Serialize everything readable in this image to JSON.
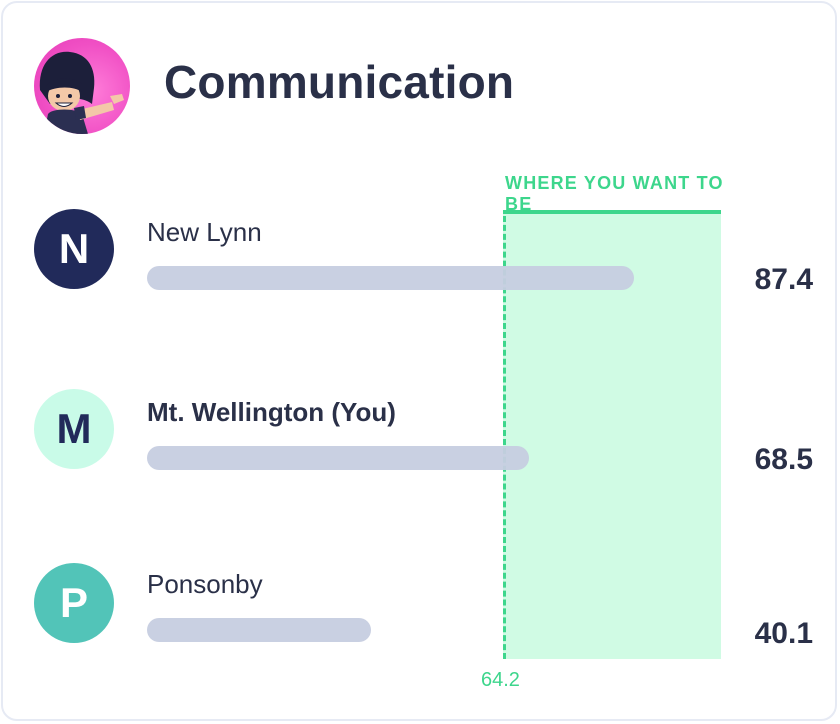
{
  "header": {
    "title": "Communication"
  },
  "chart_data": {
    "type": "bar",
    "orientation": "horizontal",
    "target_label": "WHERE YOU WANT TO BE",
    "threshold": 64.2,
    "threshold_label": "64.2",
    "xlim": [
      0,
      100
    ],
    "categories": [
      "New Lynn",
      "Mt. Wellington (You)",
      "Ponsonby"
    ],
    "values": [
      87.4,
      68.5,
      40.1
    ],
    "value_labels": [
      "87.4",
      "68.5",
      "40.1"
    ],
    "initials": [
      "N",
      "M",
      "P"
    ],
    "highlight": "Mt. Wellington (You)"
  },
  "colors": {
    "target": "#3dd68c",
    "target_band": "#d0fbe4",
    "bar": "#c6cde0",
    "text": "#2a3048",
    "badge_n": "#212a5a",
    "badge_m": "#c9fbe8",
    "badge_p": "#52c4b8"
  }
}
